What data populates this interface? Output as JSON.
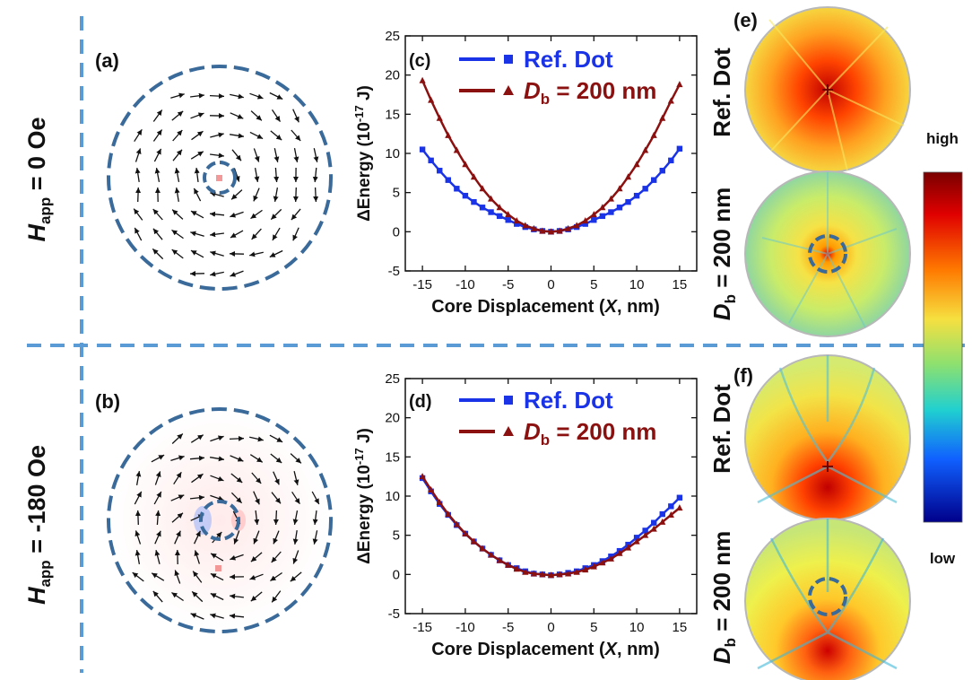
{
  "layout_labels": {
    "row1_field_var": "H",
    "row1_field_sub": "app",
    "row1_field_val": " = 0 Oe",
    "row2_field_var": "H",
    "row2_field_sub": "app",
    "row2_field_val": " = -180 Oe"
  },
  "panels": {
    "a": "(a)",
    "b": "(b)",
    "c": "(c)",
    "d": "(d)",
    "e": "(e)",
    "f": "(f)"
  },
  "map_labels": {
    "ref": "Ref. Dot",
    "db_var": "D",
    "db_sub": "b",
    "db_val": " = 200 nm"
  },
  "colorbar": {
    "high": "high",
    "low": "low"
  },
  "colors": {
    "ref_series": "#1a33e6",
    "db_series": "#8b1010",
    "dash_guide": "#5b9bd5",
    "circle": "#3a6a9a"
  },
  "chart_data": [
    {
      "type": "line",
      "panel": "(c)",
      "xlabel": "Core Displacement (X, nm)",
      "ylabel": "ΔEnergy (10-17 J)",
      "xlim": [
        -17,
        17
      ],
      "ylim": [
        -5,
        25
      ],
      "xticks": [
        -15,
        -10,
        -5,
        0,
        5,
        10,
        15
      ],
      "yticks": [
        -5,
        0,
        5,
        10,
        15,
        20,
        25
      ],
      "legend_position": "top",
      "series": [
        {
          "name": "Ref. Dot",
          "marker": "square",
          "x": [
            -15,
            -14,
            -13,
            -12,
            -11,
            -10,
            -9,
            -8,
            -7,
            -6,
            -5,
            -4,
            -3,
            -2,
            -1,
            0,
            1,
            2,
            3,
            4,
            5,
            6,
            7,
            8,
            9,
            10,
            11,
            12,
            13,
            14,
            15
          ],
          "y": [
            10.5,
            9.1,
            7.8,
            6.6,
            5.5,
            4.6,
            3.8,
            3.1,
            2.5,
            2.0,
            1.5,
            1.0,
            0.6,
            0.3,
            0.1,
            0.0,
            0.1,
            0.3,
            0.6,
            1.0,
            1.5,
            2.0,
            2.5,
            3.1,
            3.8,
            4.6,
            5.5,
            6.6,
            7.8,
            9.1,
            10.6
          ]
        },
        {
          "name": "D_b = 200 nm",
          "marker": "triangle",
          "x": [
            -15,
            -14,
            -13,
            -12,
            -11,
            -10,
            -9,
            -8,
            -7,
            -6,
            -5,
            -4,
            -3,
            -2,
            -1,
            0,
            1,
            2,
            3,
            4,
            5,
            6,
            7,
            8,
            9,
            10,
            11,
            12,
            13,
            14,
            15
          ],
          "y": [
            19.3,
            16.8,
            14.5,
            12.3,
            10.4,
            8.6,
            7.0,
            5.5,
            4.2,
            3.1,
            2.2,
            1.4,
            0.8,
            0.4,
            0.1,
            0.0,
            0.1,
            0.4,
            0.8,
            1.4,
            2.2,
            3.1,
            4.2,
            5.5,
            7.0,
            8.6,
            10.4,
            12.3,
            14.5,
            16.7,
            18.8
          ]
        }
      ]
    },
    {
      "type": "line",
      "panel": "(d)",
      "xlabel": "Core Displacement (X, nm)",
      "ylabel": "ΔEnergy (10-17 J)",
      "xlim": [
        -17,
        17
      ],
      "ylim": [
        -5,
        25
      ],
      "xticks": [
        -15,
        -10,
        -5,
        0,
        5,
        10,
        15
      ],
      "yticks": [
        -5,
        0,
        5,
        10,
        15,
        20,
        25
      ],
      "legend_position": "top",
      "series": [
        {
          "name": "Ref. Dot",
          "marker": "square",
          "x": [
            -15,
            -14,
            -13,
            -12,
            -11,
            -10,
            -9,
            -8,
            -7,
            -6,
            -5,
            -4,
            -3,
            -2,
            -1,
            0,
            1,
            2,
            3,
            4,
            5,
            6,
            7,
            8,
            9,
            10,
            11,
            12,
            13,
            14,
            15
          ],
          "y": [
            12.3,
            10.6,
            9.0,
            7.6,
            6.3,
            5.2,
            4.2,
            3.3,
            2.5,
            1.8,
            1.2,
            0.8,
            0.4,
            0.1,
            0.0,
            -0.1,
            0.0,
            0.2,
            0.4,
            0.8,
            1.2,
            1.7,
            2.3,
            3.0,
            3.8,
            4.7,
            5.6,
            6.6,
            7.7,
            8.7,
            9.8
          ]
        },
        {
          "name": "D_b = 200 nm",
          "marker": "triangle",
          "x": [
            -15,
            -14,
            -13,
            -12,
            -11,
            -10,
            -9,
            -8,
            -7,
            -6,
            -5,
            -4,
            -3,
            -2,
            -1,
            0,
            1,
            2,
            3,
            4,
            5,
            6,
            7,
            8,
            9,
            10,
            11,
            12,
            13,
            14,
            15
          ],
          "y": [
            12.5,
            10.8,
            9.2,
            7.7,
            6.4,
            5.2,
            4.2,
            3.3,
            2.5,
            1.8,
            1.2,
            0.7,
            0.3,
            0.1,
            0.0,
            -0.1,
            0.0,
            0.1,
            0.3,
            0.6,
            1.0,
            1.5,
            2.0,
            2.7,
            3.4,
            4.2,
            5.0,
            5.8,
            6.7,
            7.6,
            8.5
          ]
        }
      ]
    }
  ]
}
